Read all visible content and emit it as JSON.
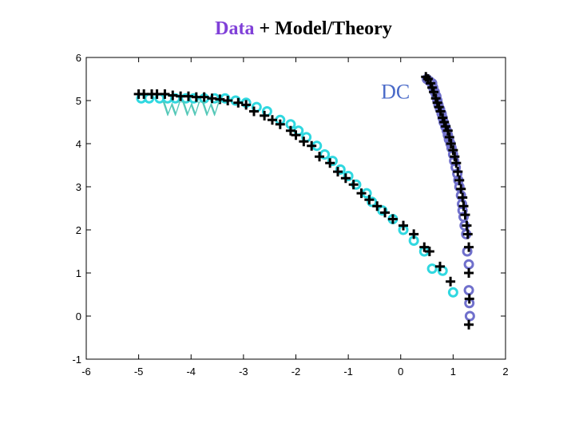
{
  "chart_data": {
    "type": "scatter",
    "title": {
      "part1": "Data",
      "part2": " + Model/Theory",
      "part1_color": "#8040d8",
      "part2_color": "#000000"
    },
    "xlabel": "",
    "ylabel": "",
    "xlim": [
      -6,
      2
    ],
    "ylim": [
      -1,
      6
    ],
    "xticks": [
      "-6",
      "-5",
      "-4",
      "-3",
      "-2",
      "-1",
      "0",
      "1",
      "2"
    ],
    "yticks": [
      "-1",
      "0",
      "1",
      "2",
      "3",
      "4",
      "5",
      "6"
    ],
    "grid": false,
    "annotations": [
      {
        "text": "WWW",
        "x": -4.0,
        "y": 4.65,
        "color": "#55c8b8"
      },
      {
        "text": "DC",
        "x": -0.1,
        "y": 5.05,
        "color": "#4a6ac8"
      }
    ],
    "series": [
      {
        "marker": "circle",
        "color": "#30d8e0",
        "x": [
          -4.95,
          -4.8,
          -4.6,
          -4.45,
          -4.3,
          -4.1,
          -3.95,
          -3.75,
          -3.55,
          -3.35,
          -3.15,
          -2.95,
          -2.75,
          -2.55,
          -2.3,
          -2.1,
          -1.95,
          -1.8,
          -1.6,
          -1.45,
          -1.3,
          -1.15,
          -1.0,
          -0.85,
          -0.65,
          -0.55,
          -0.35,
          -0.15,
          0.05,
          0.25,
          0.45,
          0.6,
          0.8,
          1.0
        ],
        "y": [
          5.05,
          5.05,
          5.05,
          5.05,
          5.05,
          5.05,
          5.05,
          5.05,
          5.05,
          5.05,
          5.0,
          4.95,
          4.85,
          4.75,
          4.55,
          4.45,
          4.3,
          4.15,
          3.95,
          3.75,
          3.6,
          3.4,
          3.25,
          3.05,
          2.85,
          2.65,
          2.45,
          2.25,
          2.0,
          1.75,
          1.5,
          1.1,
          1.05,
          0.55
        ]
      },
      {
        "marker": "plus",
        "color": "#000000",
        "x": [
          -5.0,
          -4.9,
          -4.75,
          -4.65,
          -4.5,
          -4.35,
          -4.2,
          -4.05,
          -3.9,
          -3.75,
          -3.6,
          -3.45,
          -3.3,
          -3.1,
          -2.95,
          -2.8,
          -2.6,
          -2.45,
          -2.3,
          -2.1,
          -2.0,
          -1.85,
          -1.7,
          -1.55,
          -1.35,
          -1.2,
          -1.05,
          -0.9,
          -0.75,
          -0.6,
          -0.45,
          -0.3,
          -0.15,
          0.05,
          0.25,
          0.45,
          0.55,
          0.75,
          0.95
        ],
        "y": [
          5.15,
          5.15,
          5.15,
          5.15,
          5.15,
          5.12,
          5.1,
          5.1,
          5.08,
          5.08,
          5.05,
          5.03,
          5.0,
          4.95,
          4.9,
          4.75,
          4.65,
          4.55,
          4.45,
          4.3,
          4.2,
          4.05,
          3.95,
          3.7,
          3.55,
          3.35,
          3.2,
          3.05,
          2.85,
          2.7,
          2.55,
          2.4,
          2.25,
          2.1,
          1.9,
          1.6,
          1.5,
          1.15,
          0.8
        ]
      },
      {
        "marker": "circle",
        "color": "#7070cc",
        "x": [
          0.5,
          0.55,
          0.6,
          0.62,
          0.65,
          0.68,
          0.7,
          0.72,
          0.75,
          0.78,
          0.8,
          0.82,
          0.85,
          0.88,
          0.9,
          0.92,
          0.95,
          0.97,
          1.0,
          1.02,
          1.05,
          1.08,
          1.1,
          1.12,
          1.15,
          1.17,
          1.18,
          1.2,
          1.22,
          1.25,
          1.27,
          1.3,
          1.3,
          1.31,
          1.32
        ],
        "y": [
          5.5,
          5.45,
          5.4,
          5.3,
          5.2,
          5.1,
          5.0,
          4.9,
          4.8,
          4.7,
          4.6,
          4.5,
          4.4,
          4.3,
          4.2,
          4.1,
          4.0,
          3.9,
          3.75,
          3.6,
          3.45,
          3.3,
          3.15,
          3.0,
          2.8,
          2.6,
          2.45,
          2.3,
          2.1,
          1.9,
          1.5,
          1.2,
          0.6,
          0.3,
          0.0
        ]
      },
      {
        "marker": "plus",
        "color": "#000000",
        "x": [
          0.48,
          0.52,
          0.57,
          0.6,
          0.63,
          0.67,
          0.7,
          0.73,
          0.76,
          0.8,
          0.83,
          0.86,
          0.9,
          0.93,
          0.96,
          1.0,
          1.03,
          1.06,
          1.09,
          1.12,
          1.15,
          1.18,
          1.2,
          1.23,
          1.26,
          1.28,
          1.3,
          1.3,
          1.31,
          1.3
        ],
        "y": [
          5.55,
          5.5,
          5.4,
          5.3,
          5.2,
          5.05,
          4.95,
          4.85,
          4.75,
          4.6,
          4.5,
          4.4,
          4.3,
          4.15,
          4.0,
          3.85,
          3.7,
          3.55,
          3.35,
          3.15,
          2.95,
          2.75,
          2.55,
          2.35,
          2.1,
          1.9,
          1.6,
          1.0,
          0.4,
          -0.2
        ]
      }
    ]
  }
}
